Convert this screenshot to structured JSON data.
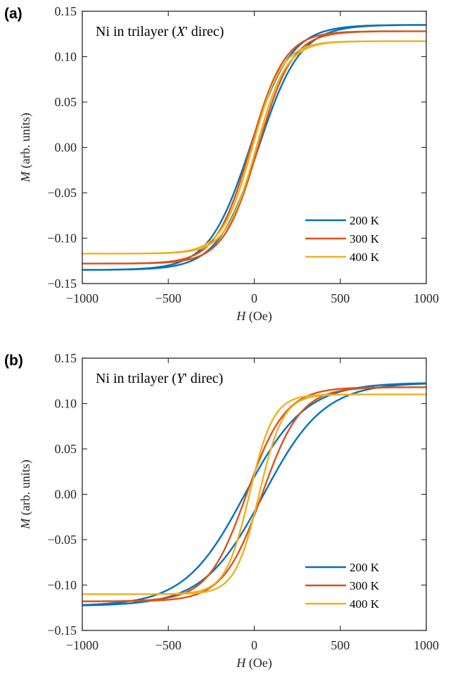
{
  "chart_data": [
    {
      "panel_label": "(a)",
      "type": "line",
      "title_prefix": "Ni in trilayer (",
      "title_italic": "X",
      "title_suffix": "' direc)",
      "xlabel_italic": "H",
      "xlabel_rest": " (Oe)",
      "ylabel_italic": "M",
      "ylabel_rest": " (arb. units)",
      "xlim": [
        -1000,
        1000
      ],
      "ylim": [
        -0.15,
        0.15
      ],
      "xticks": [
        "−1000",
        "−500",
        "0",
        "500",
        "1000"
      ],
      "xtick_values": [
        -1000,
        -500,
        0,
        500,
        1000
      ],
      "yticks": [
        "−0.15",
        "−0.10",
        "−0.05",
        "0.00",
        "0.05",
        "0.10",
        "0.15"
      ],
      "ytick_values": [
        -0.15,
        -0.1,
        -0.05,
        0.0,
        0.05,
        0.1,
        0.15
      ],
      "legend_position": "lower-right",
      "series": [
        {
          "name": "200 K",
          "color": "#0072BD",
          "Ms": 0.135,
          "Hc": 25,
          "w": 240
        },
        {
          "name": "300 K",
          "color": "#D95319",
          "Ms": 0.128,
          "Hc": 22,
          "w": 200
        },
        {
          "name": "400 K",
          "color": "#EDB120",
          "Ms": 0.117,
          "Hc": 12,
          "w": 175
        }
      ]
    },
    {
      "panel_label": "(b)",
      "type": "line",
      "title_prefix": "Ni in trilayer (",
      "title_italic": "Y",
      "title_suffix": "' direc)",
      "xlabel_italic": "H",
      "xlabel_rest": " (Oe)",
      "ylabel_italic": "M",
      "ylabel_rest": " (arb. units)",
      "xlim": [
        -1000,
        1000
      ],
      "ylim": [
        -0.15,
        0.15
      ],
      "xticks": [
        "−1000",
        "−500",
        "0",
        "500",
        "1000"
      ],
      "xtick_values": [
        -1000,
        -500,
        0,
        500,
        1000
      ],
      "yticks": [
        "−0.15",
        "−0.10",
        "−0.05",
        "0.00",
        "0.05",
        "0.10",
        "0.15"
      ],
      "ytick_values": [
        -0.15,
        -0.1,
        -0.05,
        0.0,
        0.05,
        0.1,
        0.15
      ],
      "legend_position": "lower-right",
      "series": [
        {
          "name": "200 K",
          "color": "#0072BD",
          "Ms": 0.123,
          "Hc": 55,
          "w": 350
        },
        {
          "name": "300 K",
          "color": "#D95319",
          "Ms": 0.118,
          "Hc": 45,
          "w": 225
        },
        {
          "name": "400 K",
          "color": "#EDB120",
          "Ms": 0.11,
          "Hc": 28,
          "w": 140
        }
      ]
    }
  ]
}
